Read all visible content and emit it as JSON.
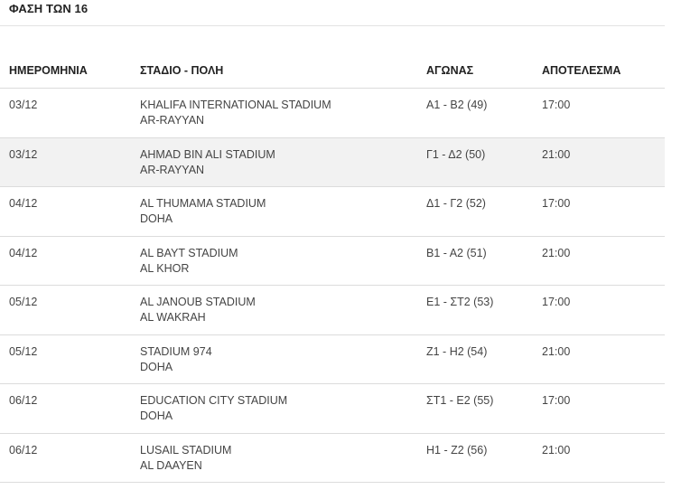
{
  "stage_title": "ΦΑΣΗ ΤΩΝ 16",
  "columns": {
    "date": "ΗΜΕΡΟΜΗΝΙΑ",
    "venue": "ΣΤΑΔΙΟ - ΠΟΛΗ",
    "match": "ΑΓΩΝΑΣ",
    "result": "ΑΠΟΤΕΛΕΣΜΑ"
  },
  "rows": [
    {
      "date": "03/12",
      "stadium": "KHALIFA INTERNATIONAL STADIUM",
      "city": "AR-RAYYAN",
      "match": "Α1 - Β2 (49)",
      "result": "17:00"
    },
    {
      "date": "03/12",
      "stadium": "AHMAD BIN ALI STADIUM",
      "city": "AR-RAYYAN",
      "match": "Γ1 - Δ2 (50)",
      "result": "21:00"
    },
    {
      "date": "04/12",
      "stadium": "AL THUMAMA STADIUM",
      "city": "DOHA",
      "match": "Δ1 - Γ2 (52)",
      "result": "17:00"
    },
    {
      "date": "04/12",
      "stadium": "AL BAYT STADIUM",
      "city": "AL KHOR",
      "match": "Β1 - Α2 (51)",
      "result": "21:00"
    },
    {
      "date": "05/12",
      "stadium": "AL JANOUB STADIUM",
      "city": "AL WAKRAH",
      "match": "Ε1 - ΣΤ2 (53)",
      "result": "17:00"
    },
    {
      "date": "05/12",
      "stadium": "STADIUM 974",
      "city": "DOHA",
      "match": "Ζ1 - Η2 (54)",
      "result": "21:00"
    },
    {
      "date": "06/12",
      "stadium": "EDUCATION CITY STADIUM",
      "city": "DOHA",
      "match": "ΣΤ1 - Ε2 (55)",
      "result": "17:00"
    },
    {
      "date": "06/12",
      "stadium": "LUSAIL STADIUM",
      "city": "AL DAAYEN",
      "match": "Η1 - Ζ2 (56)",
      "result": "21:00"
    }
  ]
}
